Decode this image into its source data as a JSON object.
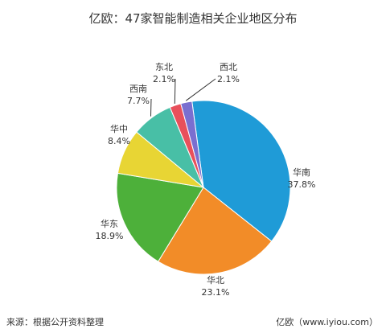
{
  "title": "亿欧：47家智能制造相关企业地区分布",
  "footer": {
    "source": "来源：根据公开资料整理",
    "credit": "亿欧（www.iyiou.com）"
  },
  "chart_data": {
    "type": "pie",
    "title": "亿欧：47家智能制造相关企业地区分布",
    "slices": [
      {
        "label": "华南",
        "value": 37.8,
        "display": "37.8%",
        "color": "#1f9bd7"
      },
      {
        "label": "华北",
        "value": 23.1,
        "display": "23.1%",
        "color": "#f28c28"
      },
      {
        "label": "华东",
        "value": 18.9,
        "display": "18.9%",
        "color": "#4db03a"
      },
      {
        "label": "华中",
        "value": 8.4,
        "display": "8.4%",
        "color": "#e8d534"
      },
      {
        "label": "西南",
        "value": 7.7,
        "display": "7.7%",
        "color": "#48bfa6"
      },
      {
        "label": "东北",
        "value": 2.1,
        "display": "2.1%",
        "color": "#e8505b"
      },
      {
        "label": "西北",
        "value": 2.1,
        "display": "2.1%",
        "color": "#7a6fd0"
      }
    ]
  }
}
